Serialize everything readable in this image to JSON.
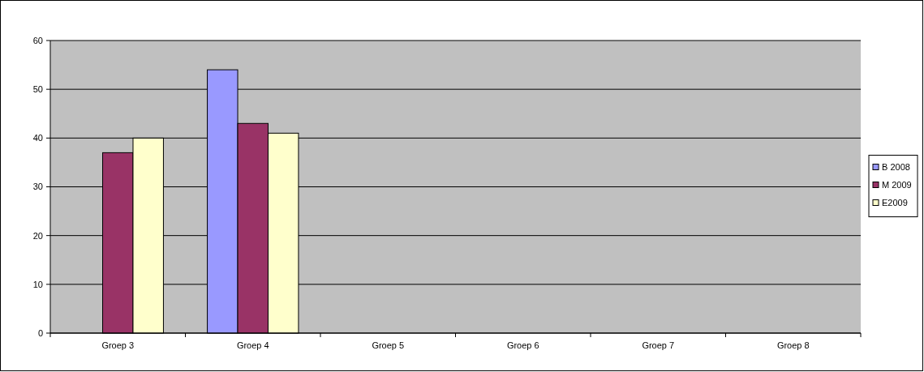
{
  "chart_data": {
    "type": "bar",
    "categories": [
      "Groep 3",
      "Groep 4",
      "Groep 5",
      "Groep 6",
      "Groep 7",
      "Groep 8"
    ],
    "series": [
      {
        "name": "B 2008",
        "color": "#9999ff",
        "values": [
          null,
          54,
          null,
          null,
          null,
          null
        ]
      },
      {
        "name": "M 2009",
        "color": "#993366",
        "values": [
          37,
          43,
          null,
          null,
          null,
          null
        ]
      },
      {
        "name": "E2009",
        "color": "#ffffcc",
        "values": [
          40,
          41,
          null,
          null,
          null,
          null
        ]
      }
    ],
    "ylim": [
      0,
      60
    ],
    "yticks": [
      0,
      10,
      20,
      30,
      40,
      50,
      60
    ],
    "grid": "y",
    "legend": "right"
  }
}
